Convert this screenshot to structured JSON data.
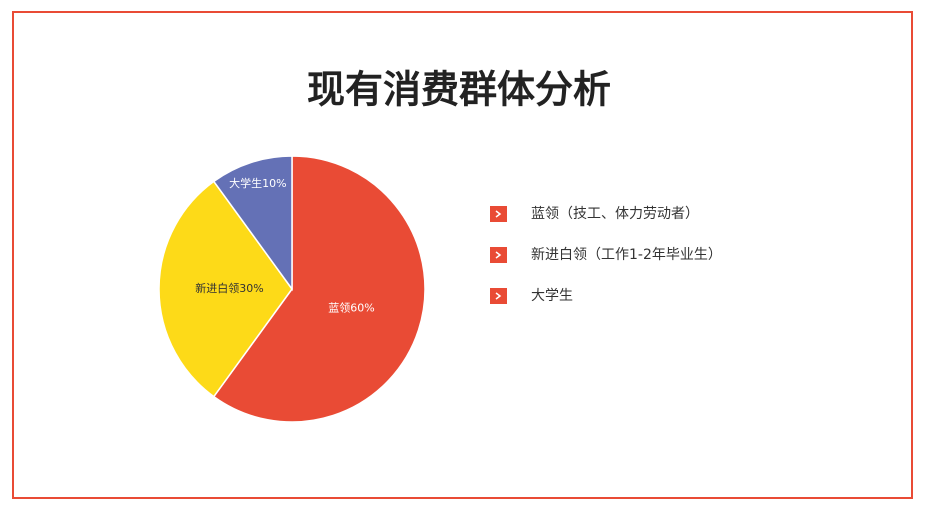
{
  "chart_data": {
    "type": "pie",
    "title": "现有消费群体分析",
    "categories": [
      "蓝领",
      "新进白领",
      "大学生"
    ],
    "values": [
      60,
      30,
      10
    ],
    "value_labels": [
      "蓝领60%",
      "新进白领30%",
      "大学生10%"
    ],
    "colors": [
      "#e94b35",
      "#fdda18",
      "#6471b6"
    ],
    "legend": [
      "蓝领（技工、体力劳动者）",
      "新进白领（工作1-2年毕业生）",
      "大学生"
    ],
    "legend_marker_color": "#e94b35"
  }
}
